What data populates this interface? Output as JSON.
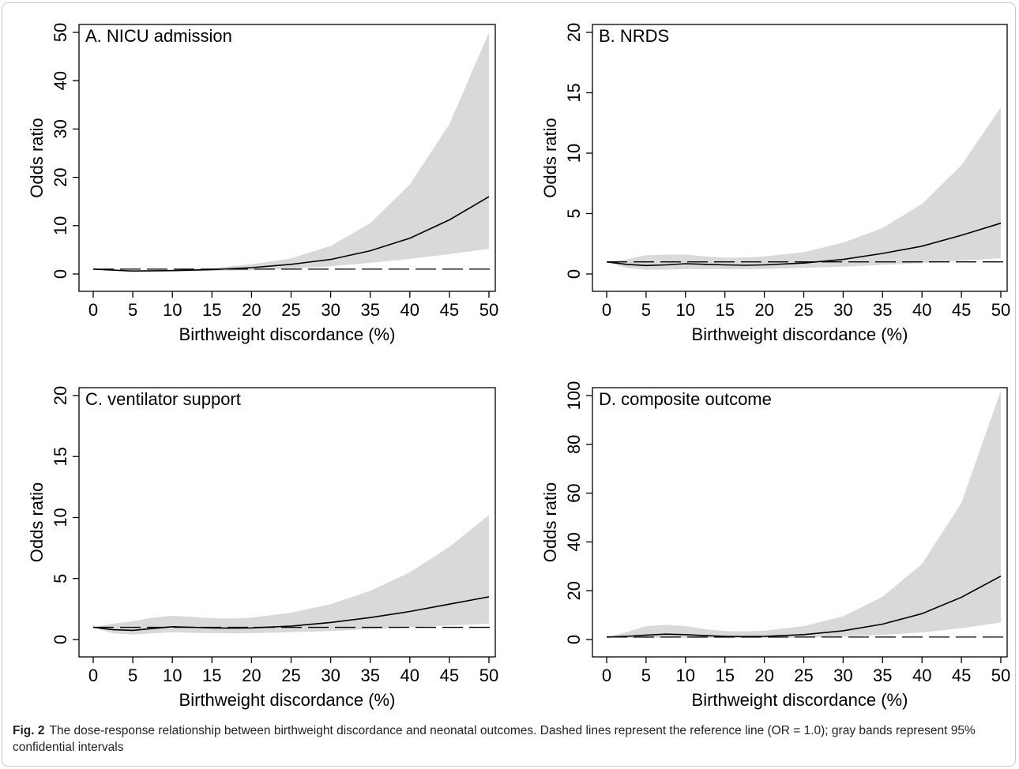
{
  "caption": {
    "label": "Fig. 2",
    "text": "The dose-response relationship between birthweight discordance and neonatal outcomes. Dashed lines represent the reference line (OR = 1.0); gray bands represent 95% confidential intervals"
  },
  "colors": {
    "band": "#d9d9d9",
    "line": "#000000",
    "axis": "#000000"
  },
  "chart_data": [
    {
      "type": "line",
      "title": "A. NICU admission",
      "xlabel": "Birthweight discordance (%)",
      "ylabel": "Odds ratio",
      "xlim": [
        0,
        50
      ],
      "ylim": [
        0,
        50
      ],
      "xticks": [
        0,
        5,
        10,
        15,
        20,
        25,
        30,
        35,
        40,
        45,
        50
      ],
      "yticks": [
        0,
        10,
        20,
        30,
        40,
        50
      ],
      "reference_line": 1.0,
      "x": [
        0,
        5,
        10,
        15,
        20,
        25,
        30,
        35,
        40,
        45,
        50
      ],
      "series": [
        {
          "label": "OR",
          "values": [
            1.0,
            0.6,
            0.7,
            0.9,
            1.3,
            2.0,
            3.0,
            4.8,
            7.4,
            11.2,
            16.0
          ]
        },
        {
          "label": "lower",
          "values": [
            1.0,
            0.5,
            0.5,
            0.6,
            0.8,
            1.1,
            1.6,
            2.3,
            3.1,
            4.1,
            5.2
          ]
        },
        {
          "label": "upper",
          "values": [
            1.0,
            0.8,
            0.9,
            1.2,
            2.0,
            3.2,
            5.8,
            10.5,
            18.5,
            31.0,
            50.0
          ]
        }
      ]
    },
    {
      "type": "line",
      "title": "B. NRDS",
      "xlabel": "Birthweight discordance (%)",
      "ylabel": "Odds ratio",
      "xlim": [
        0,
        50
      ],
      "ylim": [
        0,
        20
      ],
      "xticks": [
        0,
        5,
        10,
        15,
        20,
        25,
        30,
        35,
        40,
        45,
        50
      ],
      "yticks": [
        0,
        5,
        10,
        15,
        20
      ],
      "reference_line": 1.0,
      "x": [
        0,
        2.5,
        5,
        7.5,
        10,
        12.5,
        15,
        17.5,
        20,
        25,
        30,
        35,
        40,
        45,
        50
      ],
      "series": [
        {
          "label": "OR",
          "values": [
            1.0,
            0.8,
            0.7,
            0.75,
            0.85,
            0.8,
            0.75,
            0.72,
            0.75,
            0.9,
            1.2,
            1.7,
            2.3,
            3.2,
            4.2
          ]
        },
        {
          "label": "lower",
          "values": [
            1.0,
            0.5,
            0.35,
            0.35,
            0.4,
            0.4,
            0.4,
            0.4,
            0.42,
            0.5,
            0.6,
            0.75,
            0.9,
            1.1,
            1.3
          ]
        },
        {
          "label": "upper",
          "values": [
            1.0,
            1.2,
            1.55,
            1.6,
            1.6,
            1.45,
            1.35,
            1.35,
            1.45,
            1.8,
            2.6,
            3.8,
            5.8,
            9.0,
            13.8
          ]
        }
      ]
    },
    {
      "type": "line",
      "title": "C. ventilator support",
      "xlabel": "Birthweight discordance (%)",
      "ylabel": "Odds ratio",
      "xlim": [
        0,
        50
      ],
      "ylim": [
        0,
        20
      ],
      "xticks": [
        0,
        5,
        10,
        15,
        20,
        25,
        30,
        35,
        40,
        45,
        50
      ],
      "yticks": [
        0,
        5,
        10,
        15,
        20
      ],
      "reference_line": 1.0,
      "x": [
        0,
        2.5,
        5,
        7.5,
        10,
        12.5,
        15,
        17.5,
        20,
        25,
        30,
        35,
        40,
        45,
        50
      ],
      "series": [
        {
          "label": "OR",
          "values": [
            1.0,
            0.8,
            0.75,
            0.9,
            1.05,
            1.0,
            0.95,
            0.93,
            0.95,
            1.1,
            1.4,
            1.8,
            2.3,
            2.9,
            3.5
          ]
        },
        {
          "label": "lower",
          "values": [
            1.0,
            0.5,
            0.4,
            0.5,
            0.6,
            0.55,
            0.52,
            0.5,
            0.52,
            0.6,
            0.7,
            0.85,
            1.0,
            1.15,
            1.3
          ]
        },
        {
          "label": "upper",
          "values": [
            1.0,
            1.3,
            1.5,
            1.8,
            1.95,
            1.85,
            1.75,
            1.72,
            1.8,
            2.2,
            2.9,
            4.0,
            5.5,
            7.6,
            10.2
          ]
        }
      ]
    },
    {
      "type": "line",
      "title": "D. composite outcome",
      "xlabel": "Birthweight discordance (%)",
      "ylabel": "Odds ratio",
      "xlim": [
        0,
        50
      ],
      "ylim": [
        0,
        100
      ],
      "xticks": [
        0,
        5,
        10,
        15,
        20,
        25,
        30,
        35,
        40,
        45,
        50
      ],
      "yticks": [
        0,
        20,
        40,
        60,
        80,
        100
      ],
      "reference_line": 1.0,
      "x": [
        0,
        2.5,
        5,
        7.5,
        10,
        12.5,
        15,
        17.5,
        20,
        25,
        30,
        35,
        40,
        45,
        50
      ],
      "series": [
        {
          "label": "OR",
          "values": [
            1.0,
            1.3,
            1.8,
            2.2,
            2.0,
            1.6,
            1.3,
            1.2,
            1.3,
            2.0,
            3.6,
            6.3,
            10.6,
            17.3,
            26.0
          ]
        },
        {
          "label": "lower",
          "values": [
            1.0,
            0.7,
            0.65,
            0.7,
            0.7,
            0.65,
            0.62,
            0.6,
            0.62,
            0.8,
            1.2,
            1.9,
            2.9,
            4.6,
            7.0
          ]
        },
        {
          "label": "upper",
          "values": [
            1.0,
            3.0,
            5.5,
            6.0,
            5.5,
            4.2,
            3.5,
            3.3,
            3.6,
            5.5,
            9.5,
            17.5,
            31.0,
            56.0,
            102.0
          ]
        }
      ]
    }
  ]
}
